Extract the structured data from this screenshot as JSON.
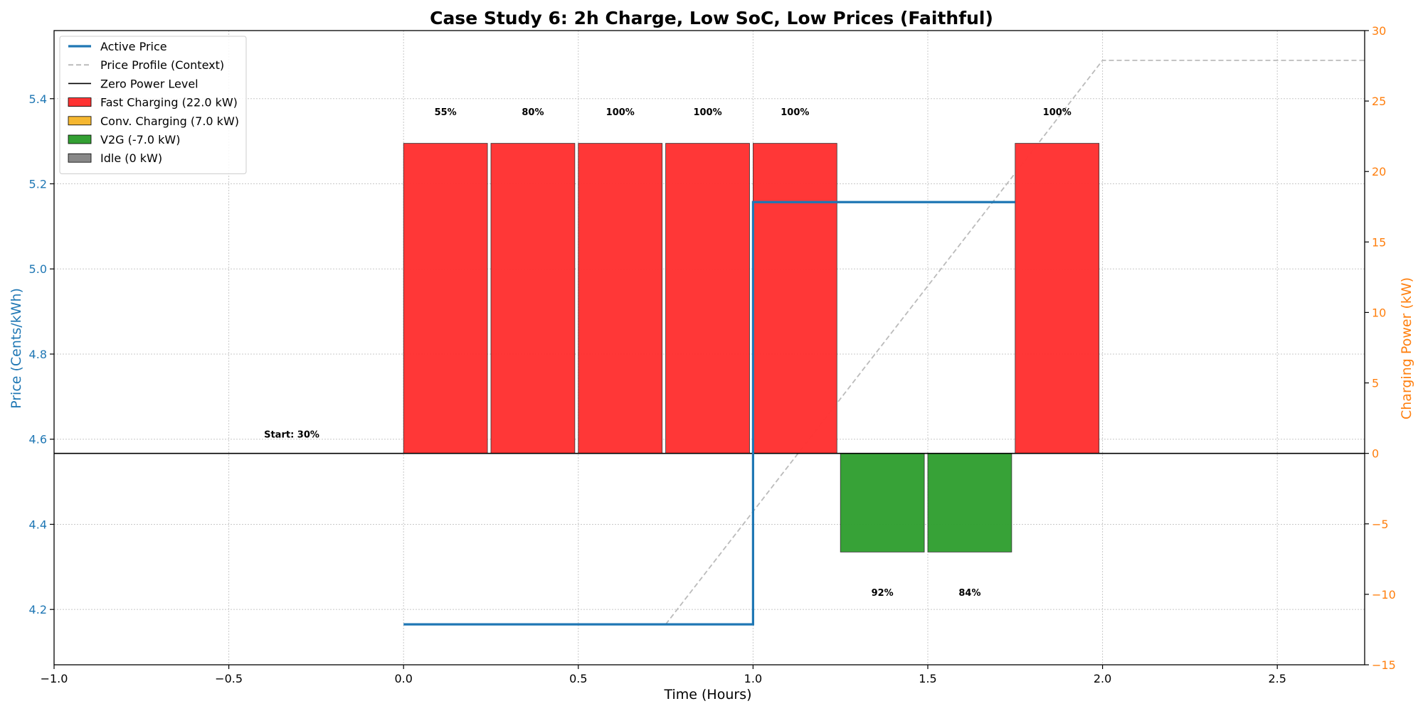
{
  "chart_data": {
    "type": "bar",
    "title": "Case Study 6: 2h Charge, Low SoC, Low Prices (Faithful)",
    "xlabel": "Time (Hours)",
    "ylabel_left": "Price (Cents/kWh)",
    "ylabel_right": "Charging Power (kW)",
    "xlim": [
      -1.0,
      2.75
    ],
    "ylim_left": [
      4.07,
      5.56
    ],
    "ylim_right": [
      -15,
      30
    ],
    "x_ticks": [
      -1.0,
      -0.5,
      0.0,
      0.5,
      1.0,
      1.5,
      2.0,
      2.5
    ],
    "x_tick_labels": [
      "−1.0",
      "−0.5",
      "0.0",
      "0.5",
      "1.0",
      "1.5",
      "2.0",
      "2.5"
    ],
    "y_left_ticks": [
      4.2,
      4.4,
      4.6,
      4.8,
      5.0,
      5.2,
      5.4
    ],
    "y_left_tick_labels": [
      "4.2",
      "4.4",
      "4.6",
      "4.8",
      "5.0",
      "5.2",
      "5.4"
    ],
    "y_right_ticks": [
      -15,
      -10,
      -5,
      0,
      5,
      10,
      15,
      20,
      25,
      30
    ],
    "y_right_tick_labels": [
      "−15",
      "−10",
      "−5",
      "0",
      "5",
      "10",
      "15",
      "20",
      "25",
      "30"
    ],
    "grid": true,
    "legend_position": "top-left",
    "colors": {
      "active_price": "#1f77b4",
      "price_profile": "#bbbbbb",
      "zero_line": "#000000",
      "fast": "#ff3333",
      "conv": "#f5b731",
      "v2g": "#33a033",
      "idle": "#888888",
      "left_axis": "#1f77b4",
      "right_axis": "#ff7f0e"
    },
    "legend": [
      {
        "label": "Active Price",
        "kind": "line-solid",
        "color": "#1f77b4"
      },
      {
        "label": "Price Profile (Context)",
        "kind": "line-dashed",
        "color": "#bbbbbb"
      },
      {
        "label": "Zero Power Level",
        "kind": "line-thin",
        "color": "#000000"
      },
      {
        "label": "Fast Charging (22.0 kW)",
        "kind": "patch",
        "color": "#ff3333"
      },
      {
        "label": "Conv. Charging (7.0 kW)",
        "kind": "patch",
        "color": "#f5b731"
      },
      {
        "label": "V2G (-7.0 kW)",
        "kind": "patch",
        "color": "#33a033"
      },
      {
        "label": "Idle (0 kW)",
        "kind": "patch",
        "color": "#888888"
      }
    ],
    "bars": [
      {
        "start": 0.0,
        "power": 22,
        "mode": "fast",
        "soc_label": "55%"
      },
      {
        "start": 0.25,
        "power": 22,
        "mode": "fast",
        "soc_label": "80%"
      },
      {
        "start": 0.5,
        "power": 22,
        "mode": "fast",
        "soc_label": "100%"
      },
      {
        "start": 0.75,
        "power": 22,
        "mode": "fast",
        "soc_label": "100%"
      },
      {
        "start": 1.0,
        "power": 22,
        "mode": "fast",
        "soc_label": "100%"
      },
      {
        "start": 1.25,
        "power": -7,
        "mode": "v2g",
        "soc_label": "92%"
      },
      {
        "start": 1.5,
        "power": -7,
        "mode": "v2g",
        "soc_label": "84%"
      },
      {
        "start": 1.75,
        "power": 22,
        "mode": "fast",
        "soc_label": "100%"
      }
    ],
    "bar_width": 0.24,
    "active_price": {
      "x": [
        0.0,
        1.0,
        1.0,
        1.75
      ],
      "y": [
        4.165,
        4.165,
        5.157,
        5.157
      ]
    },
    "price_profile": {
      "x": [
        0.75,
        2.0,
        2.75
      ],
      "y": [
        4.165,
        5.49,
        5.49
      ]
    },
    "start_annotation": {
      "x": -0.32,
      "text": "Start: 30%"
    }
  }
}
